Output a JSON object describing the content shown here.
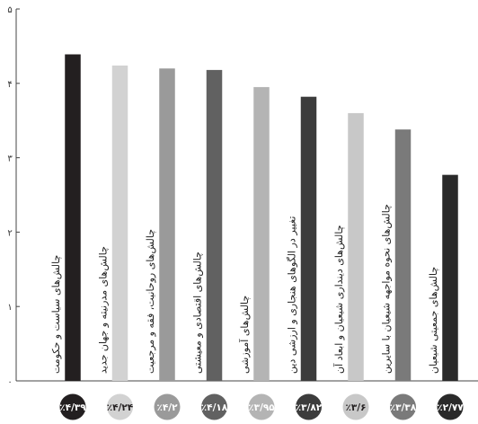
{
  "chart_data": {
    "type": "bar",
    "title": "",
    "xlabel": "",
    "ylabel": "",
    "ylim": [
      0,
      5
    ],
    "yticks": [
      "۰",
      "۱",
      "۲",
      "۳",
      "۴",
      "۵"
    ],
    "grid": false,
    "categories": [
      "چالش‌های سیاست و حکومت",
      "چالش‌های مدرنیته و جهان جدید",
      "چالش‌های روحانیت، فقه و مرجعیت",
      "چالش‌های اقتصادی و معیشتی",
      "چالش‌های آموزشی",
      "تغییر در الگوهای هنجاری و ارزشی دین",
      "چالش‌های دینداری شیعیان و ابعاد آن",
      "چالش‌های نحوه مواجهه شیعیان با سایرین",
      "چالش‌های جمعیتی شیعیان"
    ],
    "values": [
      4.39,
      4.24,
      4.2,
      4.18,
      3.95,
      3.82,
      3.6,
      3.38,
      2.77
    ],
    "data_labels": [
      "٪۴/۳۹",
      "٪۴/۲۴",
      "٪۴/۲",
      "٪۴/۱۸",
      "٪۳/۹۵",
      "٪۳/۸۲",
      "٪۳/۶",
      "٪۳/۳۸",
      "٪۲/۷۷"
    ],
    "colors": [
      "#231f20",
      "#d2d2d2",
      "#9a9a9a",
      "#616161",
      "#b4b4b4",
      "#3c3c3c",
      "#c8c8c8",
      "#7a7a7a",
      "#2a2a2a"
    ],
    "label_text_colors": [
      "#ffffff",
      "#231f20",
      "#ffffff",
      "#ffffff",
      "#ffffff",
      "#ffffff",
      "#231f20",
      "#ffffff",
      "#ffffff"
    ]
  }
}
